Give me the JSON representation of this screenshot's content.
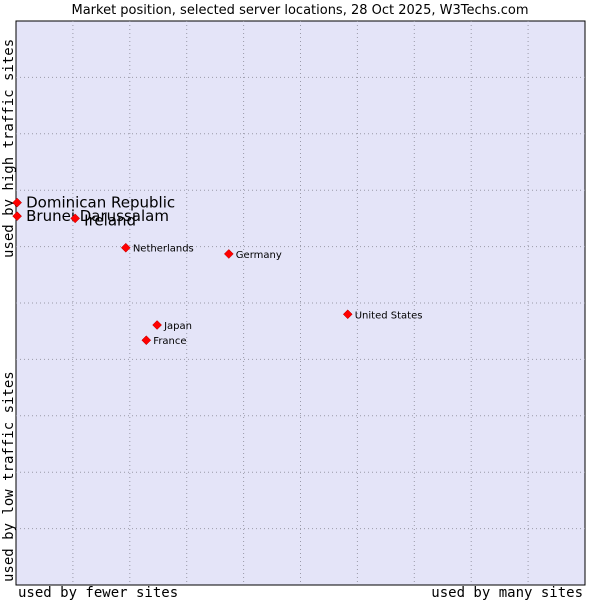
{
  "chart_data": {
    "type": "scatter",
    "title": "Market position, selected server locations, 28 Oct 2025, W3Techs.com",
    "xlabel_low": "used by fewer sites",
    "xlabel_high": "used by many sites",
    "ylabel_low": "used by low traffic sites",
    "ylabel_high": "used by high traffic sites",
    "xlim": [
      0,
      100
    ],
    "ylim": [
      0,
      100
    ],
    "grid": true,
    "colors": {
      "plot_bg": "#e4e4f8",
      "point": "#ff0000",
      "grid": "#9a9aa8"
    },
    "points": [
      {
        "label": "Dominican Republic",
        "x": 0.2,
        "y": 67.8,
        "size": "large",
        "dy": 0
      },
      {
        "label": "Brunei Darussalam",
        "x": 0.2,
        "y": 65.4,
        "size": "large",
        "dy": 0
      },
      {
        "label": "Ireland",
        "x": 10.4,
        "y": 65.0,
        "size": "large",
        "dy": 2
      },
      {
        "label": "Netherlands",
        "x": 19.3,
        "y": 59.8,
        "size": "small",
        "dy": 0
      },
      {
        "label": "Germany",
        "x": 37.4,
        "y": 58.7,
        "size": "small",
        "dy": 0
      },
      {
        "label": "United States",
        "x": 58.3,
        "y": 48.0,
        "size": "small",
        "dy": 0
      },
      {
        "label": "Japan",
        "x": 24.8,
        "y": 46.1,
        "size": "small",
        "dy": 0
      },
      {
        "label": "France",
        "x": 22.9,
        "y": 43.4,
        "size": "small",
        "dy": 0
      }
    ]
  }
}
